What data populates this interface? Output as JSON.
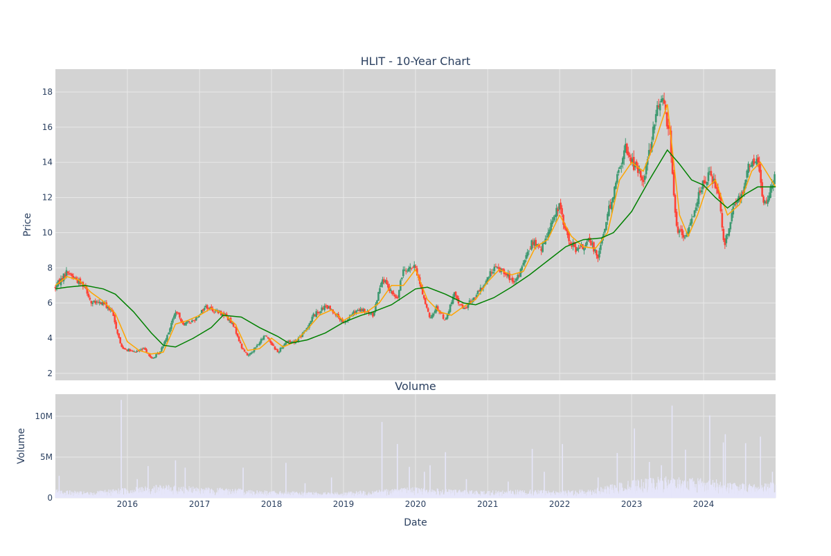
{
  "colors": {
    "plot_bg": "#d3d3d3",
    "grid": "#e8e8e8",
    "up": "#3d9970",
    "down": "#ff4136",
    "ma_short": "#ffa500",
    "ma_long": "#008000",
    "volume": "#e6e6fa",
    "text": "#2a3f5f"
  },
  "chart_data": [
    {
      "type": "candlestick",
      "title": "HLIT - 10-Year Chart",
      "xlabel": "",
      "ylabel": "Price",
      "xlim": [
        "2015-01-01",
        "2024-12-31"
      ],
      "ylim": [
        1.6,
        19.3
      ],
      "yticks": [
        2,
        4,
        6,
        8,
        10,
        12,
        14,
        16,
        18
      ],
      "grid": true,
      "legend": "none",
      "series": [
        {
          "kind": "close",
          "points": [
            [
              "2015-01-01",
              6.9
            ],
            [
              "2015-03-01",
              7.8
            ],
            [
              "2015-05-01",
              7.2
            ],
            [
              "2015-06-01",
              7.0
            ],
            [
              "2015-07-01",
              6.0
            ],
            [
              "2015-09-01",
              6.0
            ],
            [
              "2015-10-15",
              5.5
            ],
            [
              "2015-12-01",
              3.5
            ],
            [
              "2016-02-01",
              3.2
            ],
            [
              "2016-04-01",
              3.4
            ],
            [
              "2016-05-01",
              2.8
            ],
            [
              "2016-06-15",
              3.2
            ],
            [
              "2016-08-01",
              4.5
            ],
            [
              "2016-09-01",
              5.5
            ],
            [
              "2016-10-15",
              4.8
            ],
            [
              "2016-12-01",
              5.0
            ],
            [
              "2017-02-01",
              5.8
            ],
            [
              "2017-04-01",
              5.5
            ],
            [
              "2017-05-15",
              5.3
            ],
            [
              "2017-07-01",
              4.5
            ],
            [
              "2017-08-01",
              3.5
            ],
            [
              "2017-09-01",
              3.0
            ],
            [
              "2017-10-15",
              3.5
            ],
            [
              "2017-12-01",
              4.2
            ],
            [
              "2018-02-01",
              3.2
            ],
            [
              "2018-03-15",
              3.8
            ],
            [
              "2018-05-01",
              3.8
            ],
            [
              "2018-06-15",
              4.3
            ],
            [
              "2018-08-01",
              5.3
            ],
            [
              "2018-10-01",
              5.8
            ],
            [
              "2018-11-15",
              5.5
            ],
            [
              "2019-01-01",
              4.8
            ],
            [
              "2019-02-15",
              5.4
            ],
            [
              "2019-04-01",
              5.6
            ],
            [
              "2019-06-01",
              5.3
            ],
            [
              "2019-07-15",
              7.5
            ],
            [
              "2019-08-15",
              6.8
            ],
            [
              "2019-10-01",
              6.2
            ],
            [
              "2019-11-01",
              8.0
            ],
            [
              "2020-01-01",
              8.0
            ],
            [
              "2020-02-15",
              6.2
            ],
            [
              "2020-03-15",
              5.0
            ],
            [
              "2020-04-15",
              5.8
            ],
            [
              "2020-06-01",
              5.0
            ],
            [
              "2020-07-15",
              6.5
            ],
            [
              "2020-09-01",
              5.6
            ],
            [
              "2020-10-15",
              6.2
            ],
            [
              "2020-12-01",
              6.8
            ],
            [
              "2021-02-01",
              8.0
            ],
            [
              "2021-04-01",
              7.8
            ],
            [
              "2021-05-15",
              7.0
            ],
            [
              "2021-07-01",
              8.2
            ],
            [
              "2021-08-15",
              9.5
            ],
            [
              "2021-10-01",
              9.0
            ],
            [
              "2021-11-15",
              10.5
            ],
            [
              "2022-01-01",
              11.5
            ],
            [
              "2022-02-15",
              9.5
            ],
            [
              "2022-04-01",
              9.0
            ],
            [
              "2022-06-01",
              9.5
            ],
            [
              "2022-07-15",
              8.7
            ],
            [
              "2022-09-01",
              11.0
            ],
            [
              "2022-10-15",
              13.0
            ],
            [
              "2022-12-01",
              14.8
            ],
            [
              "2023-01-15",
              13.8
            ],
            [
              "2023-03-01",
              13.0
            ],
            [
              "2023-04-15",
              15.5
            ],
            [
              "2023-06-01",
              18.0
            ],
            [
              "2023-07-15",
              15.5
            ],
            [
              "2023-08-15",
              10.3
            ],
            [
              "2023-10-01",
              9.6
            ],
            [
              "2023-11-01",
              10.8
            ],
            [
              "2023-12-15",
              12.5
            ],
            [
              "2024-02-01",
              13.3
            ],
            [
              "2024-03-15",
              12.5
            ],
            [
              "2024-04-15",
              9.3
            ],
            [
              "2024-06-01",
              11.5
            ],
            [
              "2024-07-15",
              12.3
            ],
            [
              "2024-08-15",
              13.8
            ],
            [
              "2024-10-01",
              14.2
            ],
            [
              "2024-11-01",
              11.5
            ],
            [
              "2024-12-31",
              13.2
            ]
          ]
        },
        {
          "kind": "moving_average_short",
          "points": [
            [
              "2015-01-01",
              7.0
            ],
            [
              "2015-03-01",
              7.5
            ],
            [
              "2015-05-01",
              7.3
            ],
            [
              "2015-07-01",
              6.6
            ],
            [
              "2015-09-01",
              6.1
            ],
            [
              "2015-11-01",
              5.4
            ],
            [
              "2016-01-01",
              3.8
            ],
            [
              "2016-03-01",
              3.3
            ],
            [
              "2016-05-01",
              3.1
            ],
            [
              "2016-07-01",
              3.2
            ],
            [
              "2016-09-01",
              4.8
            ],
            [
              "2016-11-01",
              5.0
            ],
            [
              "2017-01-01",
              5.3
            ],
            [
              "2017-03-01",
              5.7
            ],
            [
              "2017-05-01",
              5.4
            ],
            [
              "2017-07-01",
              4.8
            ],
            [
              "2017-09-01",
              3.3
            ],
            [
              "2017-11-01",
              3.4
            ],
            [
              "2018-01-01",
              4.0
            ],
            [
              "2018-03-01",
              3.5
            ],
            [
              "2018-05-01",
              3.8
            ],
            [
              "2018-07-01",
              4.5
            ],
            [
              "2018-09-01",
              5.3
            ],
            [
              "2018-11-01",
              5.6
            ],
            [
              "2019-01-01",
              5.0
            ],
            [
              "2019-03-01",
              5.4
            ],
            [
              "2019-05-01",
              5.5
            ],
            [
              "2019-07-01",
              6.0
            ],
            [
              "2019-09-01",
              7.0
            ],
            [
              "2019-11-01",
              7.0
            ],
            [
              "2020-01-01",
              7.9
            ],
            [
              "2020-03-01",
              6.2
            ],
            [
              "2020-05-01",
              5.5
            ],
            [
              "2020-07-01",
              5.3
            ],
            [
              "2020-09-01",
              5.8
            ],
            [
              "2020-11-01",
              6.2
            ],
            [
              "2021-01-01",
              7.2
            ],
            [
              "2021-03-01",
              7.9
            ],
            [
              "2021-05-01",
              7.6
            ],
            [
              "2021-07-01",
              7.8
            ],
            [
              "2021-09-01",
              9.2
            ],
            [
              "2021-11-01",
              9.6
            ],
            [
              "2022-01-01",
              11.0
            ],
            [
              "2022-03-01",
              9.8
            ],
            [
              "2022-05-01",
              9.2
            ],
            [
              "2022-07-01",
              9.1
            ],
            [
              "2022-09-01",
              10.0
            ],
            [
              "2022-11-01",
              13.0
            ],
            [
              "2023-01-01",
              14.0
            ],
            [
              "2023-03-01",
              13.5
            ],
            [
              "2023-05-01",
              15.2
            ],
            [
              "2023-07-01",
              17.3
            ],
            [
              "2023-09-01",
              11.0
            ],
            [
              "2023-10-15",
              9.8
            ],
            [
              "2023-12-01",
              11.0
            ],
            [
              "2024-01-15",
              12.5
            ],
            [
              "2024-03-01",
              13.0
            ],
            [
              "2024-05-01",
              11.0
            ],
            [
              "2024-07-01",
              11.6
            ],
            [
              "2024-09-01",
              13.5
            ],
            [
              "2024-10-15",
              14.0
            ],
            [
              "2024-12-31",
              12.6
            ]
          ]
        },
        {
          "kind": "moving_average_long",
          "points": [
            [
              "2015-01-01",
              6.8
            ],
            [
              "2015-03-01",
              6.9
            ],
            [
              "2015-06-01",
              7.0
            ],
            [
              "2015-09-01",
              6.8
            ],
            [
              "2015-11-01",
              6.5
            ],
            [
              "2016-02-01",
              5.5
            ],
            [
              "2016-05-01",
              4.3
            ],
            [
              "2016-07-01",
              3.6
            ],
            [
              "2016-09-01",
              3.5
            ],
            [
              "2016-12-01",
              4.0
            ],
            [
              "2017-03-01",
              4.6
            ],
            [
              "2017-05-01",
              5.3
            ],
            [
              "2017-08-01",
              5.2
            ],
            [
              "2017-11-01",
              4.6
            ],
            [
              "2018-02-01",
              4.1
            ],
            [
              "2018-04-01",
              3.7
            ],
            [
              "2018-07-01",
              3.9
            ],
            [
              "2018-10-01",
              4.3
            ],
            [
              "2019-01-01",
              4.9
            ],
            [
              "2019-04-01",
              5.3
            ],
            [
              "2019-06-01",
              5.5
            ],
            [
              "2019-09-01",
              5.9
            ],
            [
              "2020-01-01",
              6.8
            ],
            [
              "2020-03-01",
              6.9
            ],
            [
              "2020-06-01",
              6.5
            ],
            [
              "2020-09-01",
              6.0
            ],
            [
              "2020-11-01",
              5.9
            ],
            [
              "2021-02-01",
              6.3
            ],
            [
              "2021-05-01",
              6.9
            ],
            [
              "2021-08-01",
              7.6
            ],
            [
              "2021-11-01",
              8.4
            ],
            [
              "2022-02-01",
              9.2
            ],
            [
              "2022-05-01",
              9.6
            ],
            [
              "2022-08-01",
              9.7
            ],
            [
              "2022-10-01",
              10.0
            ],
            [
              "2023-01-01",
              11.2
            ],
            [
              "2023-04-01",
              13.0
            ],
            [
              "2023-07-01",
              14.7
            ],
            [
              "2023-09-01",
              13.9
            ],
            [
              "2023-11-01",
              13.0
            ],
            [
              "2024-01-01",
              12.7
            ],
            [
              "2024-03-01",
              12.0
            ],
            [
              "2024-05-01",
              11.4
            ],
            [
              "2024-08-01",
              12.2
            ],
            [
              "2024-10-01",
              12.6
            ],
            [
              "2024-12-31",
              12.6
            ]
          ]
        }
      ]
    },
    {
      "type": "bar",
      "title": "Volume",
      "xlabel": "Date",
      "ylabel": "Volume",
      "xlim": [
        "2015-01-01",
        "2024-12-31"
      ],
      "ylim": [
        0,
        12.7
      ],
      "yunit": "M",
      "yticks": [
        0,
        5,
        10
      ],
      "ytick_labels": [
        "0",
        "5M",
        "10M"
      ],
      "xticks": [
        "2016-01-01",
        "2017-01-01",
        "2018-01-01",
        "2019-01-01",
        "2020-01-01",
        "2021-01-01",
        "2022-01-01",
        "2023-01-01",
        "2024-01-01"
      ],
      "xtick_labels": [
        "2016",
        "2017",
        "2018",
        "2019",
        "2020",
        "2021",
        "2022",
        "2023",
        "2024"
      ],
      "grid": true,
      "baseline_millions": [
        [
          "2015-01-01",
          0.7
        ],
        [
          "2015-07-01",
          0.5
        ],
        [
          "2016-01-01",
          0.9
        ],
        [
          "2016-07-01",
          1.1
        ],
        [
          "2017-01-01",
          0.9
        ],
        [
          "2017-07-01",
          0.8
        ],
        [
          "2018-01-01",
          0.6
        ],
        [
          "2018-07-01",
          0.5
        ],
        [
          "2019-01-01",
          0.5
        ],
        [
          "2019-07-01",
          0.7
        ],
        [
          "2020-01-01",
          0.9
        ],
        [
          "2020-07-01",
          0.7
        ],
        [
          "2021-01-01",
          0.6
        ],
        [
          "2021-07-01",
          0.7
        ],
        [
          "2022-01-01",
          0.6
        ],
        [
          "2022-07-01",
          0.8
        ],
        [
          "2023-01-01",
          1.5
        ],
        [
          "2023-07-01",
          1.8
        ],
        [
          "2024-01-01",
          1.7
        ],
        [
          "2024-07-01",
          1.2
        ],
        [
          "2024-12-31",
          1.3
        ]
      ],
      "spikes_millions": [
        [
          "2015-01-20",
          2.7
        ],
        [
          "2015-12-01",
          12.0
        ],
        [
          "2016-02-20",
          2.3
        ],
        [
          "2016-04-15",
          3.9
        ],
        [
          "2016-09-01",
          4.6
        ],
        [
          "2016-10-20",
          3.7
        ],
        [
          "2017-08-10",
          3.7
        ],
        [
          "2018-03-15",
          4.3
        ],
        [
          "2018-06-20",
          1.8
        ],
        [
          "2018-11-01",
          2.5
        ],
        [
          "2019-07-15",
          9.3
        ],
        [
          "2019-10-01",
          6.6
        ],
        [
          "2019-12-01",
          3.8
        ],
        [
          "2020-02-15",
          3.2
        ],
        [
          "2020-03-15",
          4.0
        ],
        [
          "2020-06-01",
          5.6
        ],
        [
          "2020-09-15",
          2.3
        ],
        [
          "2021-04-15",
          2.0
        ],
        [
          "2021-08-15",
          6.0
        ],
        [
          "2021-10-15",
          3.2
        ],
        [
          "2022-01-15",
          6.6
        ],
        [
          "2022-07-15",
          2.5
        ],
        [
          "2022-10-20",
          5.5
        ],
        [
          "2023-01-15",
          8.5
        ],
        [
          "2023-04-01",
          4.4
        ],
        [
          "2023-06-01",
          4.0
        ],
        [
          "2023-07-25",
          11.3
        ],
        [
          "2023-10-01",
          5.9
        ],
        [
          "2024-02-01",
          10.1
        ],
        [
          "2024-04-10",
          6.8
        ],
        [
          "2024-04-20",
          7.8
        ],
        [
          "2024-08-01",
          6.7
        ],
        [
          "2024-10-15",
          7.5
        ],
        [
          "2024-12-15",
          3.2
        ]
      ]
    }
  ]
}
